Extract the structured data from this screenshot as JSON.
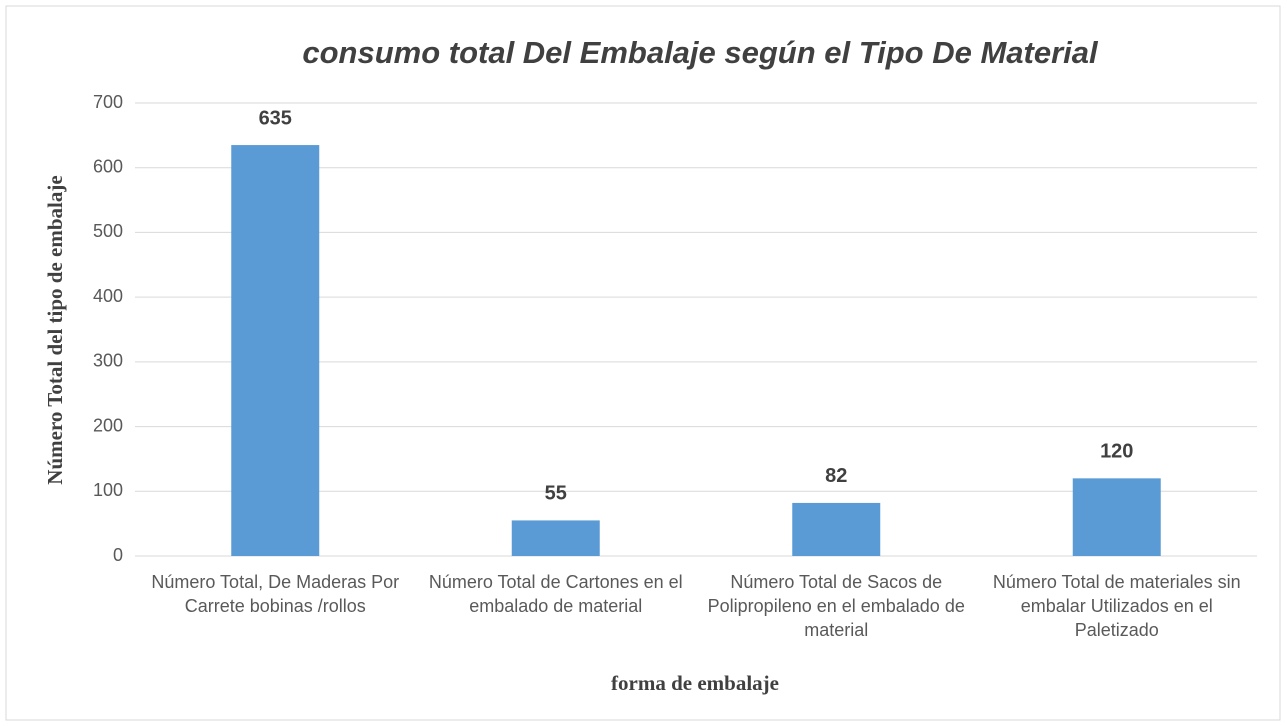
{
  "chart_data": {
    "type": "bar",
    "title": "consumo total Del Embalaje según el Tipo De Material",
    "x_label": "forma de embalaje",
    "y_label": "Número Total del tipo de embalaje",
    "categories": [
      "Número Total, De Maderas Por Carrete bobinas /rollos",
      "Número Total de Cartones en el embalado de material",
      "Número Total de Sacos de Polipropileno en el embalado de material",
      "Número Total de materiales sin embalar Utilizados en el Paletizado"
    ],
    "values": [
      635,
      55,
      82,
      120
    ],
    "color": "#5b9bd5",
    "ylim": [
      0,
      700
    ],
    "yticks": [
      0,
      100,
      200,
      300,
      400,
      500,
      600,
      700
    ],
    "grid": true
  }
}
